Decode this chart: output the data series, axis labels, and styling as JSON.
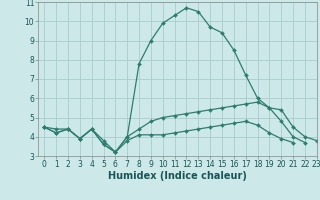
{
  "xlabel": "Humidex (Indice chaleur)",
  "x_values": [
    0,
    1,
    2,
    3,
    4,
    5,
    6,
    7,
    8,
    9,
    10,
    11,
    12,
    13,
    14,
    15,
    16,
    17,
    18,
    19,
    20,
    21,
    22,
    23
  ],
  "line1_y": [
    4.5,
    4.2,
    4.4,
    3.9,
    4.4,
    3.6,
    3.2,
    4.0,
    7.8,
    9.0,
    9.9,
    10.3,
    10.7,
    10.5,
    9.7,
    9.4,
    8.5,
    7.2,
    6.0,
    5.5,
    4.8,
    4.0,
    3.7,
    null
  ],
  "line2_y": [
    4.5,
    4.2,
    4.4,
    3.9,
    4.4,
    3.6,
    3.2,
    4.0,
    4.4,
    4.8,
    5.0,
    5.1,
    5.2,
    5.3,
    5.4,
    5.5,
    5.6,
    5.7,
    5.8,
    5.5,
    5.4,
    4.5,
    4.0,
    3.8
  ],
  "line3_y": [
    4.5,
    4.4,
    4.4,
    3.9,
    4.4,
    3.8,
    3.2,
    3.8,
    4.1,
    4.1,
    4.1,
    4.2,
    4.3,
    4.4,
    4.5,
    4.6,
    4.7,
    4.8,
    4.6,
    4.2,
    3.9,
    3.7,
    null,
    null
  ],
  "line_color": "#2e7d6e",
  "bg_color": "#cce8e8",
  "grid_color": "#aacccc",
  "ylim": [
    3,
    11
  ],
  "xlim": [
    -0.5,
    23
  ],
  "yticks": [
    3,
    4,
    5,
    6,
    7,
    8,
    9,
    10,
    11
  ],
  "xticks": [
    0,
    1,
    2,
    3,
    4,
    5,
    6,
    7,
    8,
    9,
    10,
    11,
    12,
    13,
    14,
    15,
    16,
    17,
    18,
    19,
    20,
    21,
    22,
    23
  ],
  "marker": "D",
  "marker_size": 2.0,
  "linewidth": 0.9,
  "tick_fontsize": 5.5,
  "label_fontsize": 7.0
}
